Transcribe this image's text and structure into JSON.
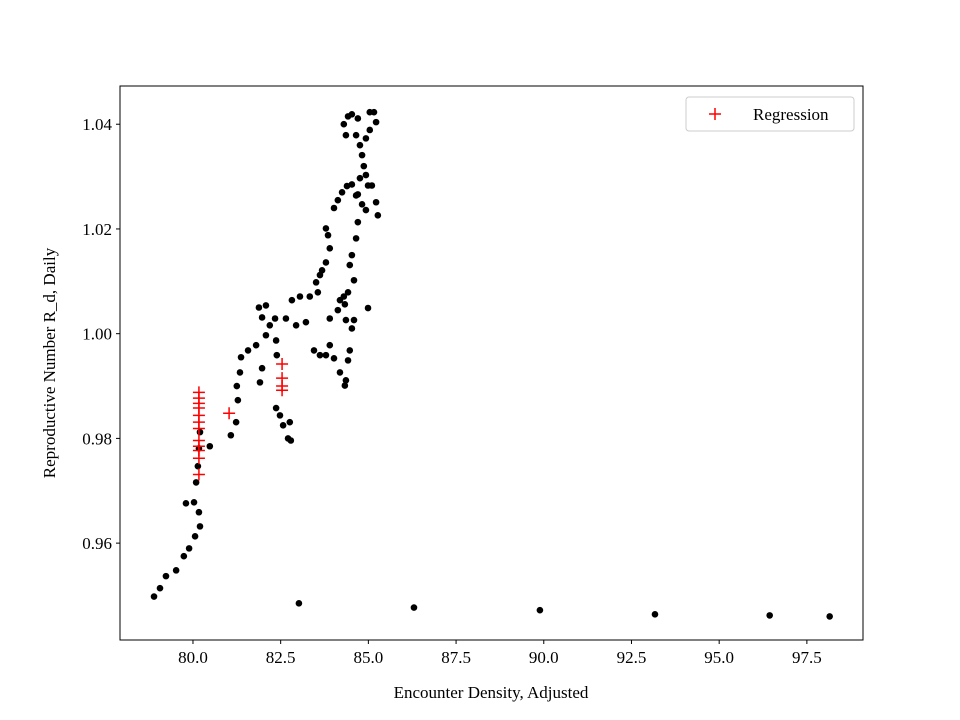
{
  "chart_data": {
    "type": "scatter",
    "xlabel": "Encounter Density, Adjusted",
    "ylabel": "Reproductive Number R_d, Daily",
    "xlim": [
      77.92,
      99.1
    ],
    "ylim": [
      0.9415,
      1.0473
    ],
    "xticks": [
      {
        "value": 80,
        "label": "80.0"
      },
      82.5,
      {
        "value": 85,
        "label": "85.0"
      },
      87.5,
      {
        "value": 90,
        "label": "90.0"
      },
      92.5,
      {
        "value": 95,
        "label": "95.0"
      },
      97.5
    ],
    "yticks": [
      0.96,
      0.98,
      {
        "value": 1,
        "label": "1.00"
      },
      1.02,
      1.04
    ],
    "legend": "upper right",
    "series": [
      {
        "color": "#000000",
        "marker": "o",
        "x": [
          78.89,
          79.06,
          79.23,
          79.52,
          79.74,
          79.89,
          80.06,
          80.2,
          80.17,
          80.03,
          79.8,
          80.09,
          80.14,
          80.17,
          80.2,
          80.48,
          81.08,
          81.23,
          81.28,
          81.25,
          81.34,
          81.37,
          81.57,
          81.8,
          81.97,
          81.91,
          82.08,
          82.19,
          82.37,
          82.39,
          81.88,
          81.97,
          82.08,
          82.34,
          82.37,
          82.48,
          82.57,
          82.71,
          82.79,
          82.76,
          82.65,
          82.82,
          83.05,
          83.33,
          83.56,
          83.51,
          83.68,
          83.79,
          83.9,
          83.62,
          82.94,
          83.22,
          83.45,
          83.62,
          83.79,
          83.9,
          84.02,
          84.19,
          84.33,
          84.36,
          84.42,
          84.47,
          84.53,
          84.36,
          84.19,
          84.3,
          84.42,
          84.59,
          84.47,
          84.53,
          84.65,
          84.7,
          83.79,
          83.85,
          84.02,
          84.13,
          84.25,
          84.39,
          84.53,
          84.7,
          84.82,
          84.93,
          84.3,
          84.36,
          84.42,
          84.53,
          84.65,
          84.7,
          84.76,
          84.82,
          84.87,
          84.93,
          84.99,
          85.04,
          85.16,
          85.22,
          85.04,
          84.93,
          85.1,
          85.22,
          85.27,
          84.65,
          84.76,
          83.9,
          84.13,
          84.33,
          84.99,
          84.59,
          83.02,
          86.3,
          89.89,
          93.17,
          96.44,
          98.15
        ],
        "y": [
          0.9498,
          0.9514,
          0.9537,
          0.9548,
          0.9575,
          0.959,
          0.9613,
          0.9632,
          0.9659,
          0.9678,
          0.9676,
          0.9716,
          0.9747,
          0.9781,
          0.9812,
          0.9785,
          0.9806,
          0.9831,
          0.9873,
          0.99,
          0.9926,
          0.9955,
          0.9968,
          0.9978,
          0.9934,
          0.9907,
          0.9997,
          1.0016,
          0.9987,
          0.9959,
          1.005,
          1.0031,
          1.0054,
          1.0029,
          0.9858,
          0.9844,
          0.9825,
          0.98,
          0.9796,
          0.9831,
          1.0029,
          1.0064,
          1.0071,
          1.0071,
          1.0079,
          1.0098,
          1.0121,
          1.0136,
          1.0163,
          1.0112,
          1.0016,
          1.0022,
          0.9968,
          0.9959,
          0.9959,
          0.9978,
          0.9953,
          0.9926,
          0.9901,
          0.9911,
          0.9949,
          0.9968,
          1.001,
          1.0026,
          1.0064,
          1.0071,
          1.0079,
          1.0102,
          1.0131,
          1.015,
          1.0182,
          1.0213,
          1.0201,
          1.0188,
          1.024,
          1.0255,
          1.027,
          1.0282,
          1.0285,
          1.0266,
          1.0247,
          1.0236,
          1.04,
          1.0379,
          1.0415,
          1.0419,
          1.0379,
          1.0411,
          1.036,
          1.0341,
          1.032,
          1.0303,
          1.0283,
          1.0423,
          1.0423,
          1.0404,
          1.0389,
          1.0373,
          1.0283,
          1.0251,
          1.0226,
          1.0264,
          1.0297,
          1.0029,
          1.0045,
          1.0056,
          1.0049,
          1.0026,
          0.9485,
          0.9477,
          0.9472,
          0.9464,
          0.9462,
          0.946
        ]
      },
      {
        "name": "Regression",
        "color": "#ff0000",
        "marker": "+",
        "x": [
          80.17,
          80.17,
          80.17,
          80.17,
          80.17,
          80.17,
          80.17,
          80.17,
          80.17,
          80.17,
          80.17,
          80.17,
          81.03,
          82.54,
          82.54,
          82.54,
          82.54
        ],
        "y": [
          0.9888,
          0.9877,
          0.9867,
          0.9858,
          0.9844,
          0.9831,
          0.9819,
          0.9796,
          0.9785,
          0.9777,
          0.9762,
          0.9731,
          0.9848,
          0.9942,
          0.9915,
          0.99,
          0.9892
        ]
      }
    ]
  }
}
